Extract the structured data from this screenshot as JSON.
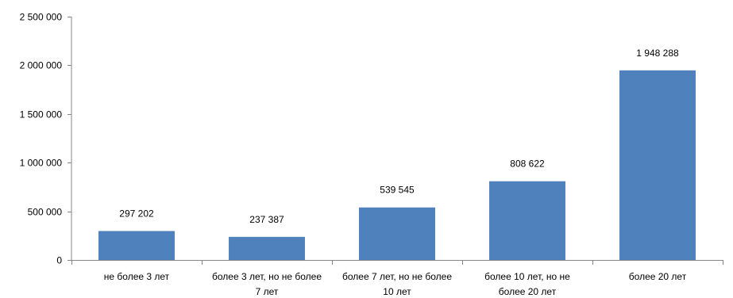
{
  "chart_data": {
    "type": "bar",
    "categories": [
      [
        "не более 3 лет"
      ],
      [
        "более 3 лет, но не более",
        "7 лет"
      ],
      [
        "более 7 лет, но не более",
        "10 лет"
      ],
      [
        "более 10 лет, но не",
        "более 20 лет"
      ],
      [
        "более 20 лет"
      ]
    ],
    "values": [
      297202,
      237387,
      539545,
      808622,
      1948288
    ],
    "data_labels": [
      "297 202",
      "237 387",
      "539 545",
      "808 622",
      "1 948 288"
    ],
    "ylim": [
      0,
      2500000
    ],
    "yticks": [
      0,
      500000,
      1000000,
      1500000,
      2000000,
      2500000
    ],
    "ytick_labels": [
      "0",
      "500 000",
      "1 000 000",
      "1 500 000",
      "2 000 000",
      "2 500 000"
    ],
    "bar_color": "#4F81BD",
    "axis_color": "#868686",
    "grid": false,
    "legend": "none",
    "title": "",
    "xlabel": "",
    "ylabel": ""
  }
}
